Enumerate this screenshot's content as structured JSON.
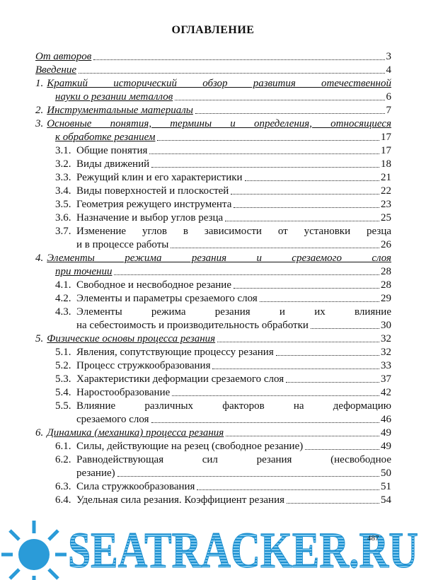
{
  "title": "ОГЛАВЛЕНИЕ",
  "sections": [
    {
      "lines": [
        "От авторов"
      ],
      "page": 3
    },
    {
      "lines": [
        "Введение"
      ],
      "page": 4
    },
    {
      "number": "1.",
      "lines": [
        "Краткий исторический обзор развития отечественной",
        "науки о резании металлов"
      ],
      "page": 6
    },
    {
      "number": "2.",
      "lines": [
        "Инструментальные материалы"
      ],
      "page": 7
    },
    {
      "number": "3.",
      "lines": [
        "Основные понятия, термины и определения, относящиеся",
        "к обработке резанием"
      ],
      "page": 17,
      "subsections": [
        {
          "number": "3.1.",
          "lines": [
            "Общие понятия"
          ],
          "page": 17
        },
        {
          "number": "3.2.",
          "lines": [
            "Виды движений"
          ],
          "page": 18
        },
        {
          "number": "3.3.",
          "lines": [
            "Режущий клин и его характеристики"
          ],
          "page": 21
        },
        {
          "number": "3.4.",
          "lines": [
            "Виды поверхностей и плоскостей"
          ],
          "page": 22
        },
        {
          "number": "3.5.",
          "lines": [
            "Геометрия режущего инструмента"
          ],
          "page": 23
        },
        {
          "number": "3.6.",
          "lines": [
            "Назначение и выбор углов резца"
          ],
          "page": 25
        },
        {
          "number": "3.7.",
          "lines": [
            "Изменение углов в зависимости от установки резца",
            "и в процессе работы"
          ],
          "page": 26
        }
      ]
    },
    {
      "number": "4.",
      "lines": [
        "Элементы режима резания и срезаемого слоя",
        "при точении"
      ],
      "page": 28,
      "subsections": [
        {
          "number": "4.1.",
          "lines": [
            "Свободное и несвободное резание"
          ],
          "page": 28
        },
        {
          "number": "4.2.",
          "lines": [
            "Элементы и параметры срезаемого слоя"
          ],
          "page": 29
        },
        {
          "number": "4.3.",
          "lines": [
            "Элементы режима резания и их влияние",
            "на себестоимость и производительность обработки"
          ],
          "page": 30
        }
      ]
    },
    {
      "number": "5.",
      "lines": [
        "Физические основы процесса резания"
      ],
      "page": 32,
      "subsections": [
        {
          "number": "5.1.",
          "lines": [
            "Явления, сопутствующие процессу резания"
          ],
          "page": 32
        },
        {
          "number": "5.2.",
          "lines": [
            "Процесс стружкообразования"
          ],
          "page": 33
        },
        {
          "number": "5.3.",
          "lines": [
            "Характеристики деформации срезаемого слоя"
          ],
          "page": 37
        },
        {
          "number": "5.4.",
          "lines": [
            "Наростообразование"
          ],
          "page": 42
        },
        {
          "number": "5.5.",
          "lines": [
            "Влияние различных факторов на деформацию",
            "срезаемого слоя"
          ],
          "page": 46
        }
      ]
    },
    {
      "number": "6.",
      "lines": [
        "Динамика (механика) процесса резания"
      ],
      "page": 49,
      "subsections": [
        {
          "number": "6.1.",
          "lines": [
            "Силы, действующие на резец (свободное резание)"
          ],
          "page": 49
        },
        {
          "number": "6.2.",
          "lines": [
            "Равнодействующая сил резания (несвободное",
            "резание)"
          ],
          "page": 50
        },
        {
          "number": "6.3.",
          "lines": [
            "Сила стружкообразования"
          ],
          "page": 51
        },
        {
          "number": "6.4.",
          "lines": [
            "Удельная сила резания. Коэффициент резания"
          ],
          "page": 54
        }
      ]
    }
  ],
  "page_number": 487,
  "watermark": "SEATRACKER.RU"
}
